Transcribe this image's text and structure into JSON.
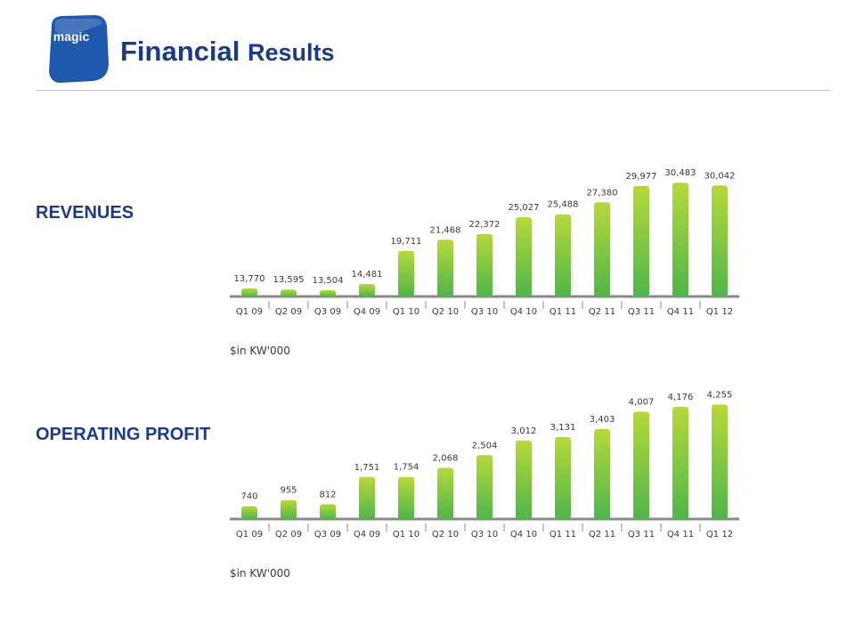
{
  "header": {
    "title_word1": "Financial",
    "title_word2": "Results",
    "logo_text": "magic",
    "title_color": "#1b3a8c"
  },
  "colors": {
    "bar_top": "#b6d93a",
    "bar_bottom": "#4fb64a",
    "axis": "#8a8a8a",
    "label": "#1b3a8c",
    "logo": "#1f58ad"
  },
  "chart_data": [
    {
      "type": "bar",
      "label": "REVENUES",
      "unit_note": "$in KW'000",
      "categories": [
        "Q1 09",
        "Q2 09",
        "Q3 09",
        "Q4 09",
        "Q1 10",
        "Q2 10",
        "Q3 10",
        "Q4 10",
        "Q1 11",
        "Q2 11",
        "Q3 11",
        "Q4 11",
        "Q1 12"
      ],
      "values": [
        13770,
        13595,
        13504,
        14481,
        19711,
        21468,
        22372,
        25027,
        25488,
        27380,
        29977,
        30483,
        30042
      ],
      "value_labels": [
        "13,770",
        "13,595",
        "13,504",
        "14,481",
        "19,711",
        "21,468",
        "22,372",
        "25,027",
        "25,488",
        "27,380",
        "29,977",
        "30,483",
        "30,042"
      ],
      "ylim": [
        12500,
        31500
      ],
      "grid": false
    },
    {
      "type": "bar",
      "label": "OPERATING PROFIT",
      "unit_note": "$in KW'000",
      "categories": [
        "Q1 09",
        "Q2 09",
        "Q3 09",
        "Q4 09",
        "Q1 10",
        "Q2 10",
        "Q3 10",
        "Q4 10",
        "Q1 11",
        "Q2 11",
        "Q3 11",
        "Q4 11",
        "Q1 12"
      ],
      "values": [
        740,
        955,
        812,
        1751,
        1754,
        2068,
        2504,
        3012,
        3131,
        3403,
        4007,
        4176,
        4255
      ],
      "value_labels": [
        "740",
        "955",
        "812",
        "1,751",
        "1,754",
        "2,068",
        "2,504",
        "3,012",
        "3,131",
        "3,403",
        "4,007",
        "4,176",
        "4,255"
      ],
      "ylim": [
        300,
        4450
      ],
      "grid": false
    }
  ]
}
